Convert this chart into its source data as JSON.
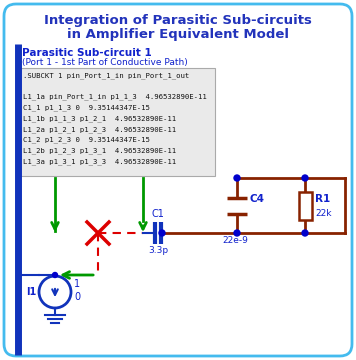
{
  "title_line1": "Integration of Parasitic Sub-circuits",
  "title_line2": "in Amplifier Equivalent Model",
  "title_color": "#2233bb",
  "bg_color": "#ffffff",
  "border_color": "#44bbee",
  "subcircuit_label": "Parasitic Sub-circuit 1",
  "subcircuit_sublabel": "(Port 1 - 1st Part of Conductive Path)",
  "subckt_lines": [
    ".SUBCKT 1 pin_Port_1_in pin_Port_1_out",
    "",
    "L1_1a pin_Port_1_in p1_1_3  4.96532890E-11",
    "C1_1 p1_1_3 0  9.35144347E-15",
    "L1_1b p1_1_3 p1_2_1  4.96532890E-11",
    "L1_2a p1_2_1 p1_2_3  4.96532890E-11",
    "C1_2 p1_2_3 0  9.35144347E-15",
    "L1_2b p1_2_3 p1_3_1  4.96532890E-11",
    "L1_3a p1_3_1 p1_3_3  4.96532890E-11"
  ],
  "blue": "#1122cc",
  "blue_dark": "#1133bb",
  "green": "#009900",
  "red": "#dd0000",
  "brown": "#882200",
  "dot_blue": "#0000cc"
}
